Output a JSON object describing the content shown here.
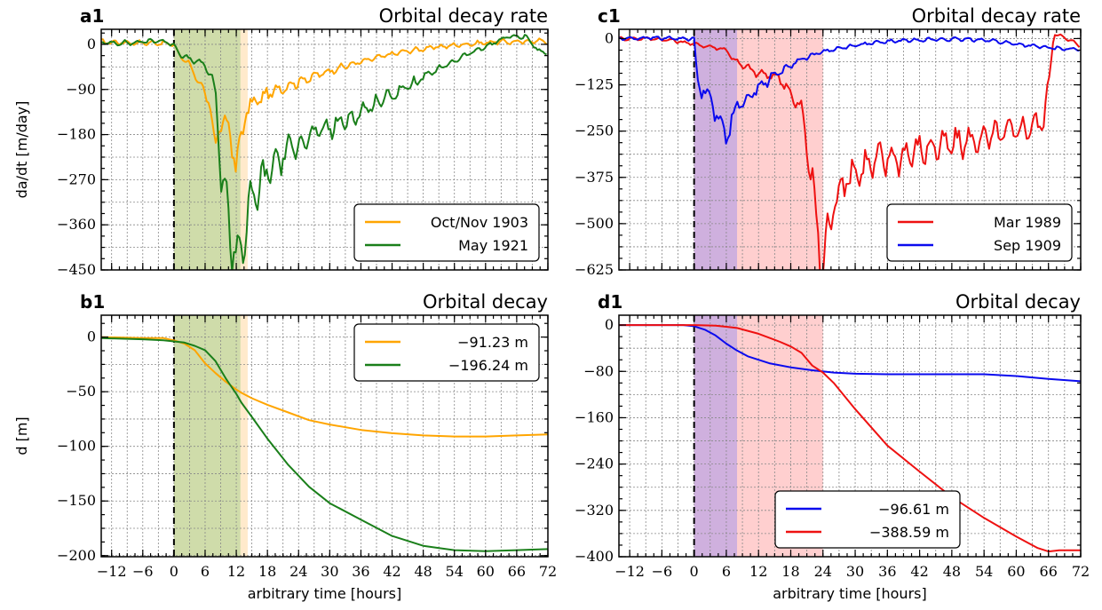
{
  "xlabel": "arbitrary time [hours]",
  "chart_data": [
    {
      "id": "a1",
      "type": "line",
      "panel_label": "a1",
      "title": "Orbital decay rate",
      "ylabel": "da/dt [m/day]",
      "xlim": [
        -14,
        72
      ],
      "ylim": [
        -450,
        30
      ],
      "xticks": [
        -12,
        -6,
        0,
        6,
        12,
        18,
        24,
        30,
        36,
        42,
        48,
        54,
        60,
        66,
        72
      ],
      "yticks": [
        0,
        -90,
        -180,
        -270,
        -360,
        -450
      ],
      "show_xtick_labels": false,
      "grid": true,
      "vline_x": 0,
      "shaded_regions": [
        {
          "x0": 0,
          "x1": 14.2,
          "color": "#ffeacc"
        },
        {
          "x0": 0,
          "x1": 12.8,
          "color": "#cfdcaa"
        }
      ],
      "legend_position": "lower-right",
      "series": [
        {
          "name": "Oct/Nov 1903",
          "color": "#ffa500",
          "noisy": true,
          "x": [
            -14,
            -8,
            -3,
            0,
            1,
            3,
            5,
            7,
            8,
            9,
            10,
            11,
            12,
            13,
            14,
            16,
            18,
            20,
            24,
            28,
            32,
            36,
            40,
            44,
            50,
            56,
            62,
            66,
            68,
            70,
            72
          ],
          "y": [
            5,
            3,
            3,
            0,
            -22,
            -38,
            -85,
            -118,
            -215,
            -150,
            -160,
            -185,
            -245,
            -185,
            -130,
            -112,
            -100,
            -90,
            -74,
            -60,
            -46,
            -35,
            -24,
            -15,
            -6,
            0,
            5,
            5,
            5,
            8,
            5
          ]
        },
        {
          "name": "May 1921",
          "color": "#1a7f1a",
          "noisy": true,
          "x": [
            -14,
            -8,
            -3,
            0,
            1,
            3,
            6,
            8,
            9,
            10,
            11,
            12,
            13,
            14,
            15,
            16,
            18,
            20,
            24,
            28,
            32,
            36,
            40,
            44,
            50,
            56,
            60,
            64,
            68,
            70,
            72
          ],
          "y": [
            3,
            3,
            8,
            0,
            -18,
            -30,
            -40,
            -90,
            -260,
            -300,
            -380,
            -430,
            -395,
            -360,
            -315,
            -290,
            -255,
            -230,
            -195,
            -175,
            -158,
            -135,
            -110,
            -90,
            -55,
            -22,
            -5,
            15,
            15,
            -12,
            -18
          ]
        }
      ]
    },
    {
      "id": "c1",
      "type": "line",
      "panel_label": "c1",
      "title": "Orbital decay rate",
      "ylabel": "",
      "xlim": [
        -14,
        72
      ],
      "ylim": [
        -625,
        25
      ],
      "xticks": [
        -12,
        -6,
        0,
        6,
        12,
        18,
        24,
        30,
        36,
        42,
        48,
        54,
        60,
        66,
        72
      ],
      "yticks": [
        0,
        -125,
        -250,
        -375,
        -500,
        -625
      ],
      "show_xtick_labels": false,
      "grid": true,
      "vline_x": 0,
      "shaded_regions": [
        {
          "x0": 0,
          "x1": 24,
          "color": "#ffcfcf"
        },
        {
          "x0": 0,
          "x1": 8,
          "color": "#cfb0de"
        }
      ],
      "legend_position": "lower-right",
      "series": [
        {
          "name": "Mar 1989",
          "color": "#ee1111",
          "noisy": true,
          "x": [
            -14,
            -8,
            -4,
            0,
            3,
            6,
            7,
            8,
            10,
            12,
            14,
            16,
            18,
            20,
            21,
            22,
            23,
            24,
            26,
            28,
            30,
            34,
            38,
            42,
            46,
            50,
            54,
            58,
            62,
            65,
            66,
            67,
            70,
            72
          ],
          "y": [
            0,
            0,
            -5,
            -15,
            -22,
            -30,
            -50,
            -65,
            -80,
            -95,
            -100,
            -105,
            -150,
            -195,
            -280,
            -400,
            -520,
            -620,
            -440,
            -380,
            -360,
            -330,
            -320,
            -300,
            -290,
            -280,
            -270,
            -255,
            -240,
            -225,
            -130,
            15,
            -5,
            -20
          ]
        },
        {
          "name": "Sep 1909",
          "color": "#0a0aee",
          "noisy": true,
          "x": [
            -14,
            -8,
            -3,
            0,
            0.5,
            1,
            2,
            3,
            4,
            5,
            6,
            7,
            8,
            10,
            12,
            14,
            16,
            18,
            20,
            24,
            30,
            36,
            42,
            48,
            54,
            60,
            66,
            72
          ],
          "y": [
            0,
            2,
            0,
            0,
            -100,
            -135,
            -140,
            -150,
            -200,
            -245,
            -250,
            -220,
            -185,
            -160,
            -130,
            -110,
            -90,
            -72,
            -55,
            -35,
            -18,
            -8,
            -3,
            -2,
            -3,
            -15,
            -25,
            -30
          ]
        }
      ]
    },
    {
      "id": "b1",
      "type": "line",
      "panel_label": "b1",
      "title": "Orbital decay",
      "ylabel": "d [m]",
      "xlim": [
        -14,
        72
      ],
      "ylim": [
        -201,
        20
      ],
      "xticks": [
        -12,
        -6,
        0,
        6,
        12,
        18,
        24,
        30,
        36,
        42,
        48,
        54,
        60,
        66,
        72
      ],
      "xtick_labels": [
        "−12",
        "−6",
        "0",
        "6",
        "12",
        "18",
        "24",
        "30",
        "36",
        "42",
        "48",
        "54",
        "60",
        "66",
        "72"
      ],
      "yticks": [
        0,
        -50,
        -100,
        -150,
        -200
      ],
      "show_xtick_labels": true,
      "grid": true,
      "vline_x": 0,
      "shaded_regions": [
        {
          "x0": 0,
          "x1": 14.2,
          "color": "#ffeacc"
        },
        {
          "x0": 0,
          "x1": 12.8,
          "color": "#cfdcaa"
        }
      ],
      "legend_position": "upper-right",
      "series": [
        {
          "name": "−91.23 m",
          "color": "#ffa500",
          "noisy": false,
          "x": [
            -14,
            -6,
            -2,
            0,
            2,
            4,
            6,
            8,
            10,
            12,
            13,
            15,
            18,
            22,
            26,
            30,
            36,
            42,
            48,
            54,
            60,
            66,
            72
          ],
          "y": [
            0,
            -1,
            -1,
            -3,
            -6,
            -12,
            -24,
            -33,
            -41,
            -48,
            -51,
            -56,
            -62,
            -69,
            -76,
            -80,
            -85,
            -88,
            -90,
            -91,
            -91,
            -90,
            -89
          ]
        },
        {
          "name": "−196.24 m",
          "color": "#1a7f1a",
          "noisy": false,
          "x": [
            -14,
            -6,
            -2,
            0,
            2,
            4,
            6,
            8,
            9,
            10,
            11,
            12,
            13,
            15,
            18,
            22,
            26,
            30,
            36,
            42,
            48,
            54,
            60,
            66,
            72
          ],
          "y": [
            -1,
            -2,
            -3,
            -4,
            -5,
            -8,
            -12,
            -22,
            -30,
            -38,
            -45,
            -52,
            -60,
            -73,
            -93,
            -117,
            -137,
            -152,
            -167,
            -182,
            -191,
            -195,
            -196,
            -195,
            -194
          ]
        }
      ]
    },
    {
      "id": "d1",
      "type": "line",
      "panel_label": "d1",
      "title": "Orbital decay",
      "ylabel": "",
      "xlim": [
        -14,
        72
      ],
      "ylim": [
        -400,
        17
      ],
      "xticks": [
        -12,
        -6,
        0,
        6,
        12,
        18,
        24,
        30,
        36,
        42,
        48,
        54,
        60,
        66,
        72
      ],
      "xtick_labels": [
        "−12",
        "−6",
        "0",
        "6",
        "12",
        "18",
        "24",
        "30",
        "36",
        "42",
        "48",
        "54",
        "60",
        "66",
        "72"
      ],
      "yticks": [
        0,
        -80,
        -160,
        -240,
        -320,
        -400
      ],
      "show_xtick_labels": true,
      "grid": true,
      "vline_x": 0,
      "shaded_regions": [
        {
          "x0": 0,
          "x1": 24,
          "color": "#ffcfcf"
        },
        {
          "x0": 0,
          "x1": 8,
          "color": "#cfb0de"
        }
      ],
      "legend_position": "lower-center",
      "series": [
        {
          "name": "−96.61 m",
          "color": "#0a0aee",
          "noisy": false,
          "x": [
            -14,
            -6,
            -2,
            0,
            2,
            4,
            6,
            8,
            10,
            14,
            18,
            22,
            26,
            30,
            36,
            42,
            48,
            54,
            60,
            66,
            72
          ],
          "y": [
            0,
            0,
            0,
            -2,
            -8,
            -18,
            -32,
            -44,
            -54,
            -66,
            -73,
            -78,
            -82,
            -84,
            -85,
            -85,
            -85,
            -85,
            -88,
            -93,
            -97
          ]
        },
        {
          "name": "−388.59 m",
          "color": "#ee1111",
          "noisy": false,
          "x": [
            -14,
            -6,
            0,
            4,
            6,
            8,
            10,
            12,
            14,
            16,
            18,
            20,
            22,
            24,
            26,
            30,
            36,
            42,
            48,
            54,
            60,
            64,
            66,
            68,
            72
          ],
          "y": [
            0,
            0,
            0,
            -1,
            -3,
            -5,
            -10,
            -15,
            -22,
            -29,
            -37,
            -48,
            -70,
            -82,
            -100,
            -145,
            -208,
            -253,
            -297,
            -333,
            -365,
            -385,
            -391,
            -389,
            -389
          ]
        }
      ]
    }
  ]
}
